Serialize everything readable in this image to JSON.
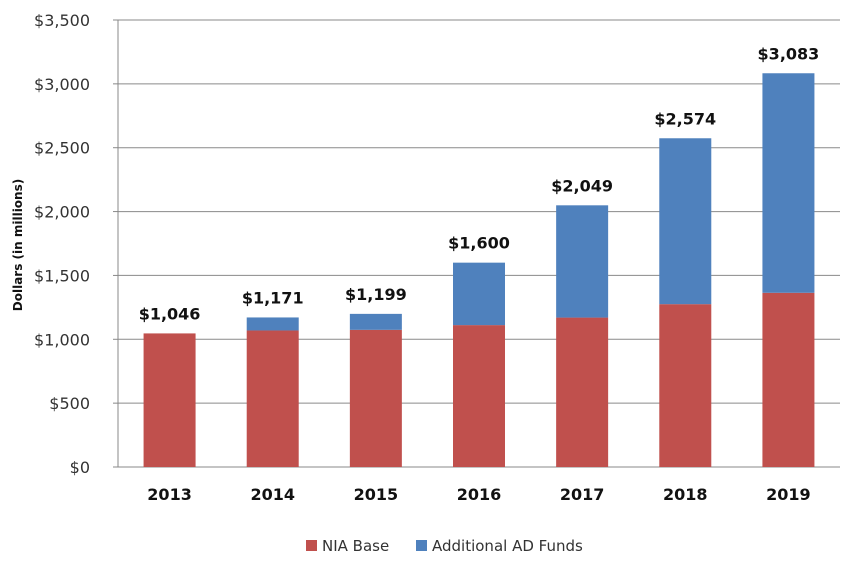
{
  "chart_data": {
    "type": "bar",
    "stacked": true,
    "title": "",
    "xlabel": "",
    "ylabel": "Dollars (in millions)",
    "ylim": [
      0,
      3500
    ],
    "yticks": [
      0,
      500,
      1000,
      1500,
      2000,
      2500,
      3000,
      3500
    ],
    "ytick_labels": [
      "$0",
      "$500",
      "$1,000",
      "$1,500",
      "$2,000",
      "$2,500",
      "$3,000",
      "$3,500"
    ],
    "grid": true,
    "legend_position": "bottom",
    "categories": [
      "2013",
      "2014",
      "2015",
      "2016",
      "2017",
      "2018",
      "2019"
    ],
    "series": [
      {
        "name": "NIA Base",
        "color": "#C0504D",
        "values": [
          1046,
          1069,
          1074,
          1111,
          1170,
          1275,
          1364
        ]
      },
      {
        "name": "Additional AD Funds",
        "color": "#4F81BD",
        "values": [
          0,
          102,
          125,
          489,
          879,
          1299,
          1719
        ]
      }
    ],
    "totals": [
      1046,
      1171,
      1199,
      1600,
      2049,
      2574,
      3083
    ],
    "total_labels": [
      "$1,046",
      "$1,171",
      "$1,199",
      "$1,600",
      "$2,049",
      "$2,574",
      "$3,083"
    ]
  }
}
